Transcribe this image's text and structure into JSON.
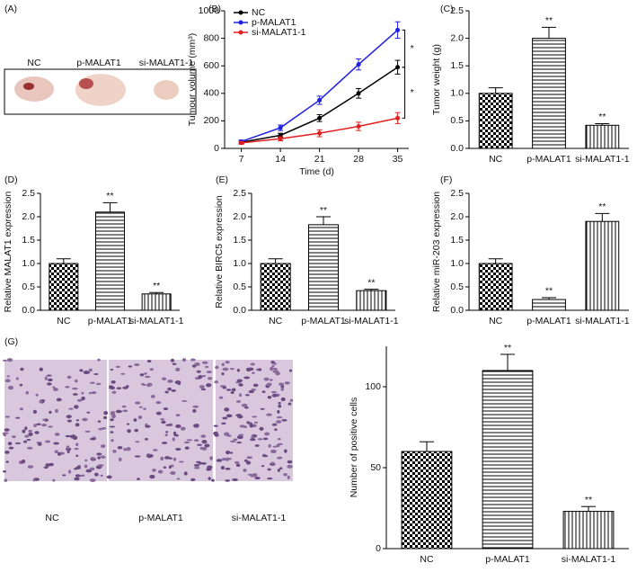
{
  "figure": {
    "panel_a": {
      "label": "(A)",
      "captions": [
        "NC",
        "p-MALAT1",
        "si-MALAT1-1"
      ]
    },
    "panel_g": {
      "label": "(G)",
      "captions": [
        "NC",
        "p-MALAT1",
        "si-MALAT1-1"
      ]
    }
  },
  "chart_data": [
    {
      "type": "line",
      "panel_label": "(B)",
      "x_label": "Time (d)",
      "y_label": "Tumour volume (mm³)",
      "x": [
        7,
        14,
        21,
        28,
        35
      ],
      "xlim": [
        4,
        37
      ],
      "xticks": [
        7,
        14,
        21,
        28,
        35
      ],
      "ylim": [
        0,
        1000
      ],
      "yticks": [
        0,
        200,
        400,
        600,
        800,
        1000
      ],
      "legend": "upper-left",
      "series": [
        {
          "name": "NC",
          "color": "#000000",
          "values": [
            45,
            95,
            220,
            400,
            590
          ],
          "errors": [
            10,
            15,
            25,
            35,
            50
          ]
        },
        {
          "name": "p-MALAT1",
          "color": "#1f1fe0",
          "values": [
            50,
            150,
            350,
            610,
            860
          ],
          "errors": [
            10,
            20,
            30,
            40,
            60
          ]
        },
        {
          "name": "si-MALAT1-1",
          "color": "#e02020",
          "values": [
            40,
            70,
            110,
            160,
            220
          ],
          "errors": [
            10,
            15,
            25,
            30,
            40
          ]
        }
      ],
      "annotations": [
        "*",
        "*"
      ]
    },
    {
      "type": "bar",
      "panel_label": "(C)",
      "y_label": "Tumor weight (g)",
      "categories": [
        "NC",
        "p-MALAT1",
        "si-MALAT1-1"
      ],
      "values": [
        1.0,
        2.0,
        0.42
      ],
      "errors": [
        0.1,
        0.2,
        0.03
      ],
      "significance": [
        null,
        "**",
        "**"
      ],
      "patterns": [
        "checker",
        "hlines",
        "vlines"
      ],
      "ylim": [
        0,
        2.5
      ],
      "yticks": [
        {
          "value": 0,
          "label": "0.0"
        },
        0.5,
        {
          "value": 1,
          "label": "1.0"
        },
        1.5,
        {
          "value": 2,
          "label": "2.0"
        },
        2.5
      ]
    },
    {
      "type": "bar",
      "panel_label": "(D)",
      "y_label": "Relative MALAT1 expression",
      "categories": [
        "NC",
        "p-MALAT1",
        "si-MALAT1-1"
      ],
      "values": [
        1.0,
        2.1,
        0.35
      ],
      "errors": [
        0.1,
        0.2,
        0.03
      ],
      "significance": [
        null,
        "**",
        "**"
      ],
      "patterns": [
        "checker",
        "hlines",
        "vlines"
      ],
      "ylim": [
        0,
        2.5
      ],
      "yticks": [
        {
          "value": 0,
          "label": "0.0"
        },
        0.5,
        {
          "value": 1,
          "label": "1.0"
        },
        1.5,
        {
          "value": 2,
          "label": "2.0"
        },
        2.5
      ]
    },
    {
      "type": "bar",
      "panel_label": "(E)",
      "y_label": "Relative BIRC5 expression",
      "categories": [
        "NC",
        "p-MALAT1",
        "si-MALAT1-1"
      ],
      "values": [
        1.0,
        1.83,
        0.42
      ],
      "errors": [
        0.1,
        0.17,
        0.03
      ],
      "significance": [
        null,
        "**",
        "**"
      ],
      "patterns": [
        "checker",
        "hlines",
        "vlines"
      ],
      "ylim": [
        0,
        2.5
      ],
      "yticks": [
        {
          "value": 0,
          "label": "0.0"
        },
        0.5,
        {
          "value": 1,
          "label": "1.0"
        },
        1.5,
        {
          "value": 2,
          "label": "2.0"
        },
        2.5
      ]
    },
    {
      "type": "bar",
      "panel_label": "(F)",
      "y_label": "Relative miR-203 expression",
      "categories": [
        "NC",
        "p-MALAT1",
        "si-MALAT1-1"
      ],
      "values": [
        1.0,
        0.23,
        1.9
      ],
      "errors": [
        0.1,
        0.04,
        0.17
      ],
      "significance": [
        null,
        "**",
        "**"
      ],
      "patterns": [
        "checker",
        "hlines",
        "vlines"
      ],
      "ylim": [
        0,
        2.5
      ],
      "yticks": [
        {
          "value": 0,
          "label": "0.0"
        },
        0.5,
        {
          "value": 1,
          "label": "1.0"
        },
        1.5,
        {
          "value": 2,
          "label": "2.0"
        },
        2.5
      ]
    },
    {
      "type": "bar",
      "y_label": "Number of positive cells",
      "categories": [
        "NC",
        "p-MALAT1",
        "si-MALAT1-1"
      ],
      "values": [
        60,
        110,
        23
      ],
      "errors": [
        6,
        10,
        3
      ],
      "significance": [
        null,
        "**",
        "**"
      ],
      "patterns": [
        "checker",
        "hlines",
        "vlines"
      ],
      "ylim": [
        0,
        125
      ],
      "yticks": [
        0,
        50,
        100
      ]
    }
  ]
}
